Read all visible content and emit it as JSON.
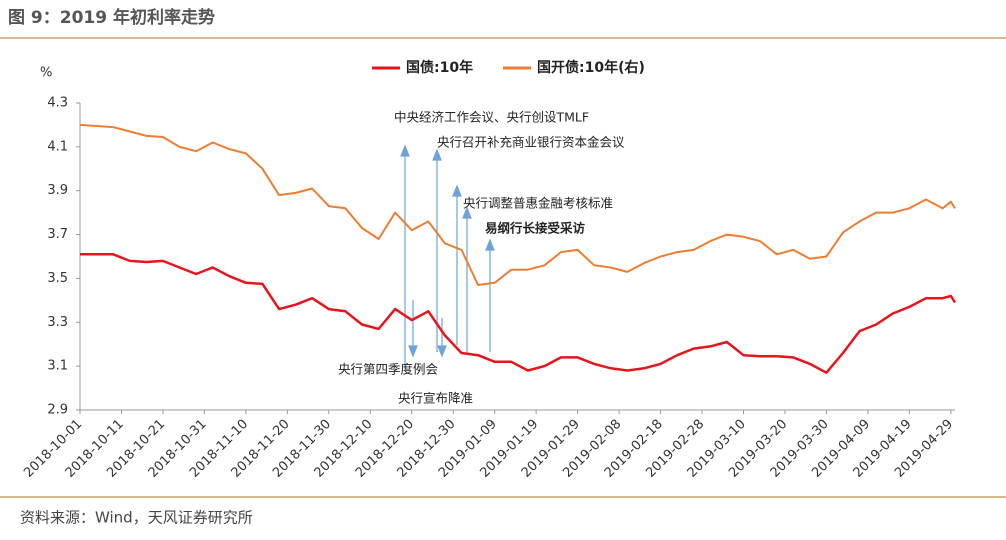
{
  "header": {
    "title": "图 9：2019 年初利率走势"
  },
  "chart_data": {
    "type": "line",
    "y_unit": "%",
    "x": [
      "2018-10-01",
      "2018-10-05",
      "2018-10-09",
      "2018-10-13",
      "2018-10-17",
      "2018-10-21",
      "2018-10-25",
      "2018-10-29",
      "2018-11-02",
      "2018-11-06",
      "2018-11-10",
      "2018-11-14",
      "2018-11-18",
      "2018-11-22",
      "2018-11-26",
      "2018-11-30",
      "2018-12-04",
      "2018-12-08",
      "2018-12-12",
      "2018-12-16",
      "2018-12-20",
      "2018-12-24",
      "2018-12-28",
      "2019-01-01",
      "2019-01-05",
      "2019-01-09",
      "2019-01-13",
      "2019-01-17",
      "2019-01-21",
      "2019-01-25",
      "2019-01-29",
      "2019-02-02",
      "2019-02-06",
      "2019-02-10",
      "2019-02-14",
      "2019-02-18",
      "2019-02-22",
      "2019-02-26",
      "2019-03-02",
      "2019-03-06",
      "2019-03-10",
      "2019-03-14",
      "2019-03-18",
      "2019-03-22",
      "2019-03-26",
      "2019-03-30",
      "2019-04-03",
      "2019-04-07",
      "2019-04-11",
      "2019-04-15",
      "2019-04-19",
      "2019-04-23",
      "2019-04-27",
      "2019-04-29",
      "2019-04-30"
    ],
    "series": [
      {
        "name": "国债:10年",
        "color": "#e8141c",
        "values": [
          3.61,
          3.61,
          3.61,
          3.58,
          3.575,
          3.58,
          3.55,
          3.52,
          3.55,
          3.51,
          3.48,
          3.475,
          3.36,
          3.38,
          3.41,
          3.36,
          3.35,
          3.29,
          3.27,
          3.36,
          3.31,
          3.35,
          3.24,
          3.16,
          3.15,
          3.12,
          3.12,
          3.08,
          3.1,
          3.14,
          3.14,
          3.11,
          3.09,
          3.08,
          3.09,
          3.11,
          3.15,
          3.18,
          3.19,
          3.21,
          3.15,
          3.145,
          3.145,
          3.14,
          3.11,
          3.07,
          3.16,
          3.26,
          3.29,
          3.34,
          3.37,
          3.41,
          3.41,
          3.42,
          3.39
        ]
      },
      {
        "name": "国开债:10年(右)",
        "color": "#ed7d31",
        "values": [
          4.2,
          4.195,
          4.19,
          4.17,
          4.15,
          4.145,
          4.1,
          4.08,
          4.12,
          4.09,
          4.07,
          4.0,
          3.88,
          3.89,
          3.91,
          3.83,
          3.82,
          3.73,
          3.68,
          3.8,
          3.72,
          3.76,
          3.66,
          3.63,
          3.47,
          3.48,
          3.54,
          3.54,
          3.56,
          3.62,
          3.63,
          3.56,
          3.55,
          3.53,
          3.57,
          3.6,
          3.62,
          3.63,
          3.67,
          3.7,
          3.69,
          3.67,
          3.61,
          3.63,
          3.59,
          3.6,
          3.71,
          3.76,
          3.8,
          3.8,
          3.82,
          3.86,
          3.82,
          3.85,
          3.82
        ]
      }
    ],
    "xlim": [
      "2018-10-01",
      "2019-04-30"
    ],
    "xticks": [
      "2018-10-01",
      "2018-10-11",
      "2018-10-21",
      "2018-10-31",
      "2018-11-10",
      "2018-11-20",
      "2018-11-30",
      "2018-12-10",
      "2018-12-20",
      "2018-12-30",
      "2019-01-09",
      "2019-01-19",
      "2019-01-29",
      "2019-02-08",
      "2019-02-18",
      "2019-02-28",
      "2019-03-10",
      "2019-03-20",
      "2019-03-30",
      "2019-04-09",
      "2019-04-19",
      "2019-04-29"
    ],
    "ylim": [
      2.9,
      4.3
    ],
    "yticks": [
      2.9,
      3.1,
      3.3,
      3.5,
      3.7,
      3.9,
      4.1,
      4.3
    ],
    "grid": false,
    "legend": "top",
    "annotations": [
      "中央经济工作会议、央行创设TMLF",
      "央行召开补充商业银行资本金会议",
      "央行调整普惠金融考核标准",
      "易纲行长接受采访",
      "央行第四季度例会",
      "央行宣布降准"
    ]
  },
  "footer": {
    "source": "资料来源：Wind，天风证券研究所"
  }
}
